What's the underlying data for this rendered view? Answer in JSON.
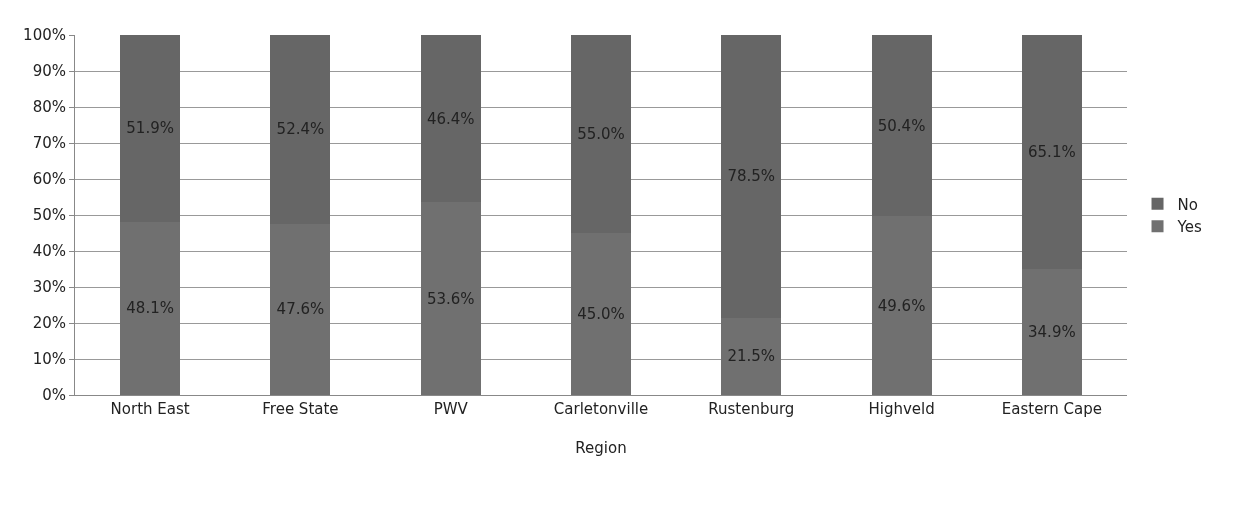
{
  "chart_data": {
    "type": "bar",
    "stacked": true,
    "xlabel": "Region",
    "categories": [
      "North East",
      "Free State",
      "PWV",
      "Carletonville",
      "Rustenburg",
      "Highveld",
      "Eastern Cape"
    ],
    "series": [
      {
        "name": "Yes",
        "color": "#707070",
        "values": [
          48.1,
          47.6,
          53.6,
          45.0,
          21.5,
          49.6,
          34.9
        ],
        "value_labels": [
          "48.1%",
          "47.6%",
          "53.6%",
          "45.0%",
          "21.5%",
          "49.6%",
          "34.9%"
        ]
      },
      {
        "name": "No",
        "color": "#666666",
        "values": [
          51.9,
          52.4,
          46.4,
          55.0,
          78.5,
          50.4,
          65.1
        ],
        "value_labels": [
          "51.9%",
          "52.4%",
          "46.4%",
          "55.0%",
          "78.5%",
          "50.4%",
          "65.1%"
        ]
      }
    ],
    "ylim": [
      0,
      100
    ],
    "yticks": [
      {
        "value": 0,
        "label": "0%"
      },
      {
        "value": 10,
        "label": "10%"
      },
      {
        "value": 20,
        "label": "20%"
      },
      {
        "value": 30,
        "label": "30%"
      },
      {
        "value": 40,
        "label": "40%"
      },
      {
        "value": 50,
        "label": "50%"
      },
      {
        "value": 60,
        "label": "60%"
      },
      {
        "value": 70,
        "label": "70%"
      },
      {
        "value": 80,
        "label": "80%"
      },
      {
        "value": 90,
        "label": "90%"
      },
      {
        "value": 100,
        "label": "100%"
      }
    ],
    "grid": "y",
    "legend": "right"
  }
}
